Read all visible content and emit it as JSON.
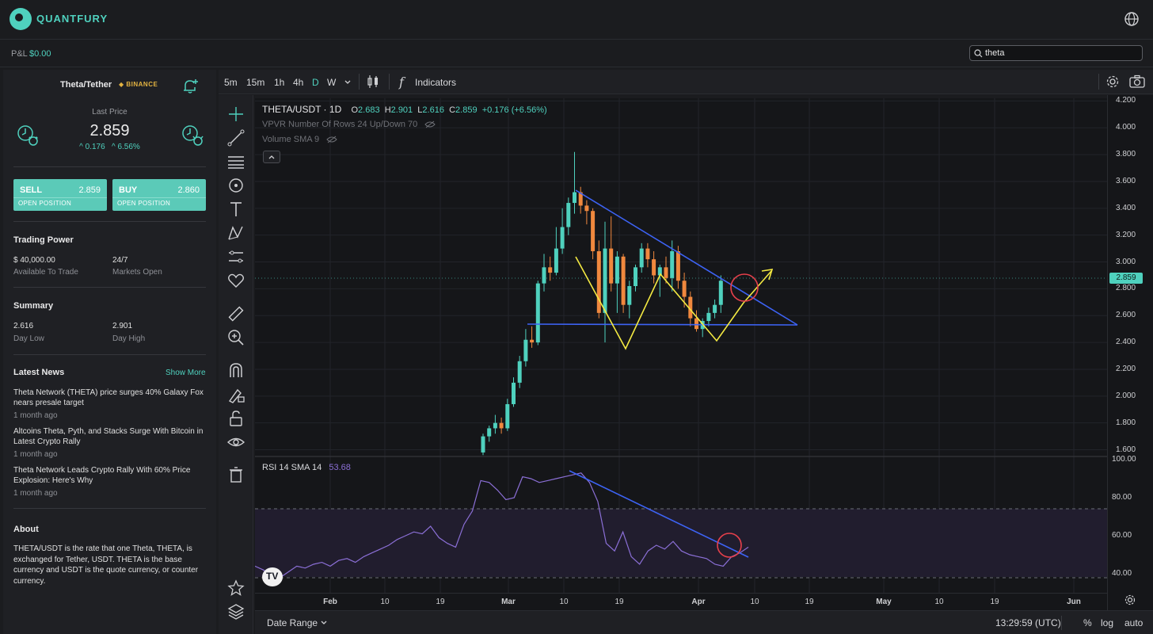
{
  "app": {
    "brand": "QUANTFURY"
  },
  "pnl": {
    "label": "P&L",
    "value": "$0.00"
  },
  "search": {
    "value": "theta"
  },
  "instrument": {
    "pair": "Theta/Tether",
    "exchange": "BINANCE",
    "last_price_label": "Last Price",
    "last_price": "2.859",
    "change_abs": "^ 0.176",
    "change_pct": "^ 6.56%"
  },
  "trade": {
    "sell_label": "SELL",
    "sell_price": "2.859",
    "buy_label": "BUY",
    "buy_price": "2.860",
    "open_position": "OPEN POSITION"
  },
  "trading_power": {
    "title": "Trading Power",
    "amount": "$ 40,000.00",
    "amount_label": "Available To Trade",
    "hours": "24/7",
    "hours_label": "Markets Open"
  },
  "summary": {
    "title": "Summary",
    "low": "2.616",
    "low_label": "Day Low",
    "high": "2.901",
    "high_label": "Day High"
  },
  "news": {
    "title": "Latest News",
    "show_more": "Show More",
    "items": [
      {
        "title": "Theta Network (THETA) price surges 40% Galaxy Fox nears presale target",
        "time": "1 month ago"
      },
      {
        "title": "Altcoins Theta, Pyth, and Stacks Surge With Bitcoin in Latest Crypto Rally",
        "time": "1 month ago"
      },
      {
        "title": "Theta Network Leads Crypto Rally With 60% Price Explosion: Here's Why",
        "time": "1 month ago"
      }
    ]
  },
  "about": {
    "title": "About",
    "text": "THETA/USDT is the rate that one Theta, THETA, is exchanged for Tether, USDT. THETA is the base currency and USDT is the quote currency, or counter currency."
  },
  "toolbar": {
    "timeframes": [
      "5m",
      "15m",
      "1h",
      "4h",
      "D",
      "W"
    ],
    "active_timeframe": "D",
    "indicators_label": "Indicators"
  },
  "legend": {
    "symbol": "THETA/USDT · 1D",
    "o_label": "O",
    "o": "2.683",
    "h_label": "H",
    "h": "2.901",
    "l_label": "L",
    "l": "2.616",
    "c_label": "C",
    "c": "2.859",
    "change": "+0.176 (+6.56%)",
    "vpvr": "VPVR Number Of Rows 24 Up/Down 70",
    "volume": "Volume SMA 9",
    "rsi": "RSI 14 SMA 14",
    "rsi_value": "53.68"
  },
  "price_axis": {
    "ticks": [
      "4.200",
      "4.000",
      "3.800",
      "3.600",
      "3.400",
      "3.200",
      "3.000",
      "2.800",
      "2.600",
      "2.400",
      "2.200",
      "2.000",
      "1.800",
      "1.600"
    ],
    "current": "2.859"
  },
  "rsi_axis": {
    "ticks": [
      "100.00",
      "80.00",
      "60.00",
      "40.00"
    ]
  },
  "time_axis": {
    "ticks": [
      "Feb",
      "10",
      "19",
      "Mar",
      "10",
      "19",
      "Apr",
      "10",
      "19",
      "May",
      "10",
      "19",
      "Jun"
    ]
  },
  "bottom": {
    "date_range": "Date Range",
    "time": "13:29:59 (UTC)",
    "pct": "%",
    "log": "log",
    "auto": "auto"
  },
  "colors": {
    "up": "#4fd1be",
    "down": "#f0883e",
    "accent": "#4fd1be",
    "trendline": "#3d63f5",
    "pattern": "#f4ea42",
    "marker": "#e8404b",
    "rsi": "#8b6fd6"
  },
  "chart_data": {
    "type": "candlestick",
    "symbol": "THETA/USDT",
    "interval": "1D",
    "ylim": [
      1.55,
      4.22
    ],
    "candles": [
      [
        1.58,
        1.72,
        1.56,
        1.7
      ],
      [
        1.7,
        1.78,
        1.66,
        1.76
      ],
      [
        1.76,
        1.86,
        1.72,
        1.8
      ],
      [
        1.8,
        1.84,
        1.72,
        1.76
      ],
      [
        1.76,
        1.98,
        1.74,
        1.94
      ],
      [
        1.94,
        2.14,
        1.92,
        2.1
      ],
      [
        2.1,
        2.3,
        2.06,
        2.26
      ],
      [
        2.26,
        2.5,
        2.22,
        2.42
      ],
      [
        2.42,
        2.52,
        2.36,
        2.4
      ],
      [
        2.4,
        2.86,
        2.38,
        2.84
      ],
      [
        2.84,
        3.06,
        2.78,
        2.96
      ],
      [
        2.96,
        3.04,
        2.86,
        2.92
      ],
      [
        2.92,
        3.26,
        2.9,
        3.1
      ],
      [
        3.1,
        3.4,
        3.06,
        3.26
      ],
      [
        3.26,
        3.48,
        3.2,
        3.44
      ],
      [
        3.44,
        3.82,
        3.36,
        3.52
      ],
      [
        3.52,
        3.56,
        3.36,
        3.42
      ],
      [
        3.42,
        3.46,
        3.28,
        3.38
      ],
      [
        3.38,
        3.4,
        3.02,
        3.08
      ],
      [
        3.08,
        3.16,
        2.58,
        2.62
      ],
      [
        2.62,
        3.3,
        2.4,
        3.1
      ],
      [
        3.1,
        3.34,
        2.78,
        2.84
      ],
      [
        2.84,
        3.08,
        2.62,
        3.04
      ],
      [
        3.04,
        3.06,
        2.62,
        2.68
      ],
      [
        2.68,
        2.86,
        2.58,
        2.82
      ],
      [
        2.82,
        2.98,
        2.78,
        2.96
      ],
      [
        2.96,
        3.14,
        2.92,
        3.1
      ],
      [
        3.1,
        3.14,
        2.96,
        3.02
      ],
      [
        3.02,
        3.08,
        2.84,
        2.9
      ],
      [
        2.9,
        2.98,
        2.74,
        2.96
      ],
      [
        2.96,
        3.04,
        2.84,
        2.88
      ],
      [
        2.88,
        3.16,
        2.78,
        3.08
      ],
      [
        3.08,
        3.12,
        2.8,
        2.86
      ],
      [
        2.86,
        2.92,
        2.66,
        2.74
      ],
      [
        2.74,
        2.78,
        2.52,
        2.58
      ],
      [
        2.58,
        2.64,
        2.48,
        2.5
      ],
      [
        2.5,
        2.58,
        2.44,
        2.56
      ],
      [
        2.56,
        2.66,
        2.52,
        2.62
      ],
      [
        2.62,
        2.72,
        2.58,
        2.68
      ],
      [
        2.68,
        2.9,
        2.62,
        2.86
      ]
    ],
    "rsi": [
      44,
      42,
      39,
      38,
      41,
      44,
      43,
      45,
      46,
      44,
      47,
      48,
      46,
      49,
      51,
      53,
      55,
      58,
      60,
      62,
      61,
      65,
      59,
      56,
      54,
      66,
      73,
      89,
      88,
      84,
      79,
      80,
      91,
      90,
      88,
      89,
      90,
      91,
      92,
      93,
      88,
      78,
      56,
      52,
      62,
      49,
      45,
      52,
      55,
      53,
      57,
      52,
      50,
      49,
      48,
      45,
      44,
      49,
      51,
      54
    ],
    "rsi_ylim": [
      30,
      100
    ],
    "rsi_bands": [
      30,
      70
    ]
  }
}
